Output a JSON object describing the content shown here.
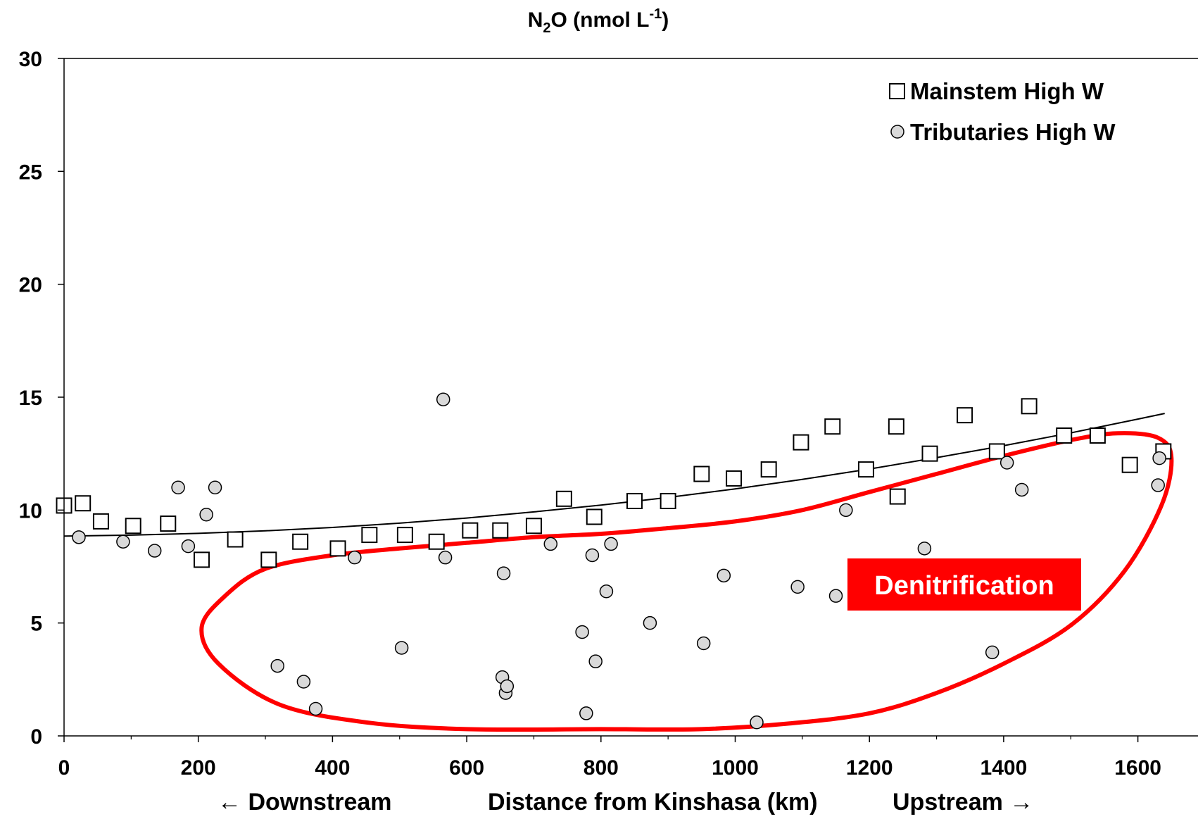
{
  "chart_data": {
    "type": "scatter",
    "title_main": "N",
    "title_sub": "2",
    "title_mid": "O (nmol L",
    "title_sup": "-1",
    "title_end": ")",
    "xlabel": "Distance from Kinshasa (km)",
    "xlabel_left": "← Downstream",
    "xlabel_right": "Upstream  →",
    "xlim": [
      0,
      1650
    ],
    "ylim": [
      0,
      30
    ],
    "xticks": [
      "0",
      "200",
      "400",
      "600",
      "800",
      "1000",
      "1200",
      "1400",
      "1600"
    ],
    "yticks": [
      "0",
      "5",
      "10",
      "15",
      "20",
      "25",
      "30"
    ],
    "grid": false,
    "legend_position": "top-right",
    "series": [
      {
        "name": "Mainstem High W",
        "marker": "square",
        "color": "#ffffff",
        "points": [
          [
            0,
            10.2
          ],
          [
            28,
            10.3
          ],
          [
            55,
            9.5
          ],
          [
            103,
            9.3
          ],
          [
            155,
            9.4
          ],
          [
            205,
            7.8
          ],
          [
            255,
            8.7
          ],
          [
            305,
            7.8
          ],
          [
            352,
            8.6
          ],
          [
            408,
            8.3
          ],
          [
            455,
            8.9
          ],
          [
            508,
            8.9
          ],
          [
            555,
            8.6
          ],
          [
            605,
            9.1
          ],
          [
            650,
            9.1
          ],
          [
            700,
            9.3
          ],
          [
            745,
            10.5
          ],
          [
            790,
            9.7
          ],
          [
            850,
            10.4
          ],
          [
            900,
            10.4
          ],
          [
            950,
            11.6
          ],
          [
            998,
            11.4
          ],
          [
            1050,
            11.8
          ],
          [
            1098,
            13.0
          ],
          [
            1145,
            13.7
          ],
          [
            1195,
            11.8
          ],
          [
            1240,
            13.7
          ],
          [
            1242,
            10.6
          ],
          [
            1290,
            12.5
          ],
          [
            1342,
            14.2
          ],
          [
            1390,
            12.6
          ],
          [
            1438,
            14.6
          ],
          [
            1490,
            13.3
          ],
          [
            1540,
            13.3
          ],
          [
            1588,
            12.0
          ],
          [
            1638,
            12.6
          ]
        ]
      },
      {
        "name": "Tributaries High W",
        "marker": "circle",
        "color": "#d9d9d9",
        "points": [
          [
            22,
            8.8
          ],
          [
            88,
            8.6
          ],
          [
            135,
            8.2
          ],
          [
            170,
            11.0
          ],
          [
            185,
            8.4
          ],
          [
            212,
            9.8
          ],
          [
            225,
            11.0
          ],
          [
            318,
            3.1
          ],
          [
            357,
            2.4
          ],
          [
            375,
            1.2
          ],
          [
            433,
            7.9
          ],
          [
            503,
            3.9
          ],
          [
            565,
            14.9
          ],
          [
            568,
            7.9
          ],
          [
            653,
            2.6
          ],
          [
            655,
            7.2
          ],
          [
            658,
            1.9
          ],
          [
            660,
            2.2
          ],
          [
            725,
            8.5
          ],
          [
            772,
            4.6
          ],
          [
            778,
            1.0
          ],
          [
            787,
            8.0
          ],
          [
            792,
            3.3
          ],
          [
            808,
            6.4
          ],
          [
            815,
            8.5
          ],
          [
            873,
            5.0
          ],
          [
            953,
            4.1
          ],
          [
            983,
            7.1
          ],
          [
            1032,
            0.6
          ],
          [
            1093,
            6.6
          ],
          [
            1150,
            6.2
          ],
          [
            1165,
            10.0
          ],
          [
            1282,
            8.3
          ],
          [
            1383,
            3.7
          ],
          [
            1405,
            12.1
          ],
          [
            1427,
            10.9
          ],
          [
            1630,
            11.1
          ],
          [
            1632,
            12.3
          ]
        ]
      }
    ],
    "trendline": {
      "color": "#000000",
      "points": [
        [
          0,
          8.85
        ],
        [
          100,
          8.89
        ],
        [
          200,
          8.97
        ],
        [
          300,
          9.08
        ],
        [
          400,
          9.23
        ],
        [
          500,
          9.42
        ],
        [
          600,
          9.65
        ],
        [
          700,
          9.92
        ],
        [
          800,
          10.22
        ],
        [
          900,
          10.56
        ],
        [
          1000,
          10.94
        ],
        [
          1100,
          11.36
        ],
        [
          1200,
          11.82
        ],
        [
          1300,
          12.32
        ],
        [
          1400,
          12.85
        ],
        [
          1500,
          13.42
        ],
        [
          1600,
          14.03
        ],
        [
          1640,
          14.28
        ]
      ]
    },
    "annotation": {
      "text": "Denitrification",
      "color": "#ff0000",
      "outline_color": "#ff0000",
      "outline_points": [
        [
          1080,
          0.55
        ],
        [
          1200,
          1.0
        ],
        [
          1300,
          1.9
        ],
        [
          1400,
          3.2
        ],
        [
          1500,
          4.9
        ],
        [
          1580,
          7.3
        ],
        [
          1635,
          10.2
        ],
        [
          1650,
          12.3
        ],
        [
          1630,
          13.2
        ],
        [
          1570,
          13.4
        ],
        [
          1500,
          13.1
        ],
        [
          1400,
          12.4
        ],
        [
          1300,
          11.6
        ],
        [
          1200,
          10.8
        ],
        [
          1100,
          10.0
        ],
        [
          1000,
          9.5
        ],
        [
          900,
          9.2
        ],
        [
          800,
          8.95
        ],
        [
          700,
          8.8
        ],
        [
          600,
          8.55
        ],
        [
          500,
          8.3
        ],
        [
          400,
          8.0
        ],
        [
          300,
          7.4
        ],
        [
          240,
          6.2
        ],
        [
          205,
          4.8
        ],
        [
          230,
          3.2
        ],
        [
          320,
          1.4
        ],
        [
          450,
          0.6
        ],
        [
          600,
          0.3
        ],
        [
          800,
          0.3
        ],
        [
          950,
          0.3
        ],
        [
          1080,
          0.55
        ]
      ]
    }
  }
}
